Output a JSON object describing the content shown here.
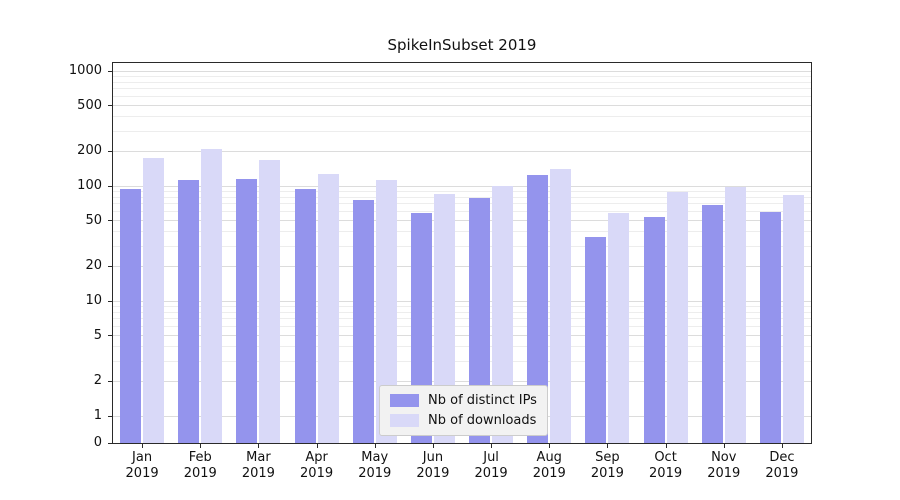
{
  "chart_data": {
    "type": "bar",
    "title": "SpikeInSubset 2019",
    "categories": [
      "Jan 2019",
      "Feb 2019",
      "Mar 2019",
      "Apr 2019",
      "May 2019",
      "Jun 2019",
      "Jul 2019",
      "Aug 2019",
      "Sep 2019",
      "Oct 2019",
      "Nov 2019",
      "Dec 2019"
    ],
    "series": [
      {
        "name": "Nb of distinct IPs",
        "slug": "distinct-ips",
        "color": "#9494ed",
        "values": [
          95,
          112,
          115,
          95,
          75,
          58,
          78,
          125,
          36,
          54,
          68,
          60
        ]
      },
      {
        "name": "Nb of downloads",
        "slug": "downloads",
        "color": "#d9d9f8",
        "values": [
          175,
          210,
          170,
          128,
          112,
          85,
          100,
          142,
          58,
          88,
          98,
          84
        ]
      }
    ],
    "y_scale": "symlog",
    "y_ticks": [
      0,
      1,
      2,
      5,
      10,
      20,
      50,
      100,
      200,
      500,
      1000
    ],
    "ylim": [
      0,
      1200
    ],
    "grid": true,
    "legend_position": "inside-bottom-center"
  }
}
